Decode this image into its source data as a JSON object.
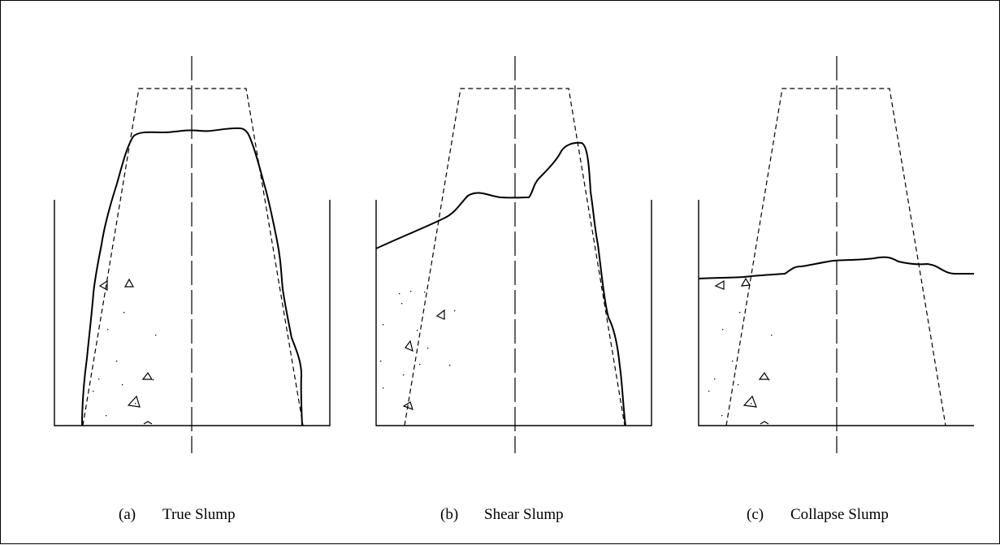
{
  "figure": {
    "panels": [
      {
        "letter": "(a)",
        "title": "True Slump"
      },
      {
        "letter": "(b)",
        "title": "Shear Slump"
      },
      {
        "letter": "(c)",
        "title": "Collapse Slump"
      }
    ]
  }
}
